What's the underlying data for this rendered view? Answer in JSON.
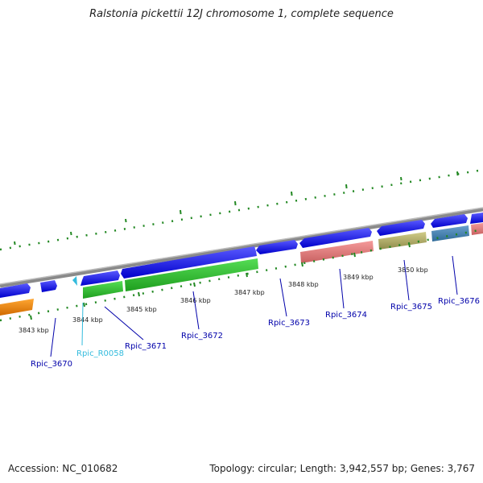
{
  "title": "Ralstonia pickettii 12J chromosome 1, complete sequence",
  "footer": {
    "accession": "Accession: NC_010682",
    "summary": "Topology: circular; Length: 3,942,557 bp; Genes: 3,767"
  },
  "axis_ticks": [
    {
      "label": "3843 kbp"
    },
    {
      "label": "3844 kbp"
    },
    {
      "label": "3845 kbp"
    },
    {
      "label": "3846 kbp"
    },
    {
      "label": "3847 kbp"
    },
    {
      "label": "3848 kbp"
    },
    {
      "label": "3849 kbp"
    },
    {
      "label": "3850 kbp"
    }
  ],
  "gene_labels": [
    {
      "label": "Rpic_3670",
      "color": "#0000aa"
    },
    {
      "label": "Rpic_R0058",
      "color": "#33bbdd"
    },
    {
      "label": "Rpic_3671",
      "color": "#0000aa"
    },
    {
      "label": "Rpic_3672",
      "color": "#0000aa"
    },
    {
      "label": "Rpic_3673",
      "color": "#0000aa"
    },
    {
      "label": "Rpic_3674",
      "color": "#0000aa"
    },
    {
      "label": "Rpic_3675",
      "color": "#0000aa"
    },
    {
      "label": "Rpic_3676",
      "color": "#0000aa"
    }
  ],
  "colors": {
    "blue_gene": "#1a1aee",
    "green_gene": "#33cc33",
    "orange_gene": "#ff8c00",
    "pink_gene": "#f08080",
    "olive_gene": "#bdb76b",
    "steel_gene": "#4682b4",
    "trna": "#33bbdd",
    "backbone": "#888888",
    "dots": "#228822"
  }
}
